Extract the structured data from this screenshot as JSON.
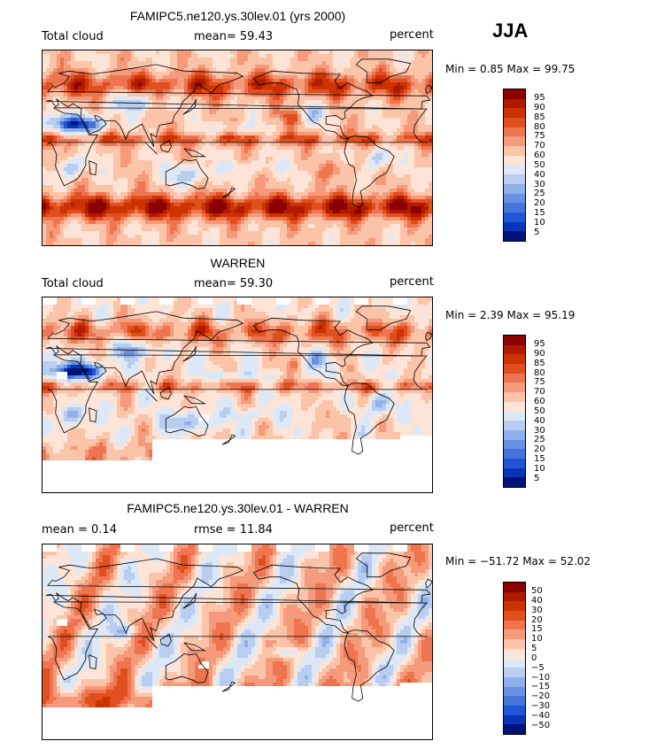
{
  "season": "JJA",
  "palettes": {
    "cloud": [
      "#8b0000",
      "#b01a00",
      "#cc3300",
      "#e0501f",
      "#ee7550",
      "#f59a7a",
      "#fbc3a8",
      "#fde4d6",
      "#dde8f7",
      "#b8cdf0",
      "#8fb0ea",
      "#6a92e4",
      "#4575dc",
      "#2255d3",
      "#0a33b8",
      "#00127a"
    ],
    "diff": [
      "#8b0000",
      "#b01a00",
      "#cc3300",
      "#e0501f",
      "#ee7550",
      "#f59a7a",
      "#fbc3a8",
      "#fde4d6",
      "#dde8f7",
      "#b8cdf0",
      "#8fb0ea",
      "#6a92e4",
      "#4575dc",
      "#2255d3",
      "#0a33b8",
      "#00127a"
    ],
    "missing": "#ffffff"
  },
  "panels": [
    {
      "title": "FAMIPC5.ne120.ys.30lev.01 (yrs 2000)",
      "left_label": "Total cloud",
      "center_label": "mean=  59.43",
      "units": "percent",
      "minmax": "Min =    0.85 Max =   99.75",
      "field": "model",
      "levels": [
        "95",
        "90",
        "85",
        "80",
        "75",
        "70",
        "60",
        "50",
        "40",
        "30",
        "25",
        "20",
        "15",
        "10",
        "5"
      ]
    },
    {
      "title": "WARREN",
      "left_label": "Total cloud",
      "center_label": "mean=  59.30",
      "units": "percent",
      "minmax": "Min =    2.39 Max =   95.19",
      "field": "obs",
      "levels": [
        "95",
        "90",
        "85",
        "80",
        "75",
        "70",
        "60",
        "50",
        "40",
        "30",
        "25",
        "20",
        "15",
        "10",
        "5"
      ]
    },
    {
      "title": "FAMIPC5.ne120.ys.30lev.01 - WARREN",
      "left_label": "mean =    0.14",
      "center_label": "rmse  =  11.84",
      "units": "percent",
      "minmax": "Min = −51.72 Max =   52.02",
      "field": "diff",
      "levels": [
        "50",
        "40",
        "30",
        "20",
        "15",
        "10",
        "5",
        "0",
        "−5",
        "−10",
        "−15",
        "−20",
        "−30",
        "−40",
        "−50"
      ]
    }
  ],
  "chart_data": {
    "type": "heatmap",
    "season": "JJA",
    "units": "percent",
    "panels": [
      {
        "name": "FAMIPC5.ne120.ys.30lev.01 (yrs 2000)",
        "variable": "Total cloud",
        "mean": 59.43,
        "min": 0.85,
        "max": 99.75,
        "contour_levels": [
          5,
          10,
          15,
          20,
          25,
          30,
          40,
          50,
          60,
          70,
          75,
          80,
          85,
          90,
          95
        ]
      },
      {
        "name": "WARREN",
        "variable": "Total cloud",
        "mean": 59.3,
        "min": 2.39,
        "max": 95.19,
        "contour_levels": [
          5,
          10,
          15,
          20,
          25,
          30,
          40,
          50,
          60,
          70,
          75,
          80,
          85,
          90,
          95
        ]
      },
      {
        "name": "FAMIPC5.ne120.ys.30lev.01 - WARREN",
        "mean": 0.14,
        "rmse": 11.84,
        "min": -51.72,
        "max": 52.02,
        "contour_levels": [
          -50,
          -40,
          -30,
          -20,
          -15,
          -10,
          -5,
          0,
          5,
          10,
          15,
          20,
          30,
          40,
          50
        ]
      }
    ],
    "x_range_lon": [
      0,
      360
    ],
    "y_range_lat": [
      -90,
      90
    ]
  }
}
